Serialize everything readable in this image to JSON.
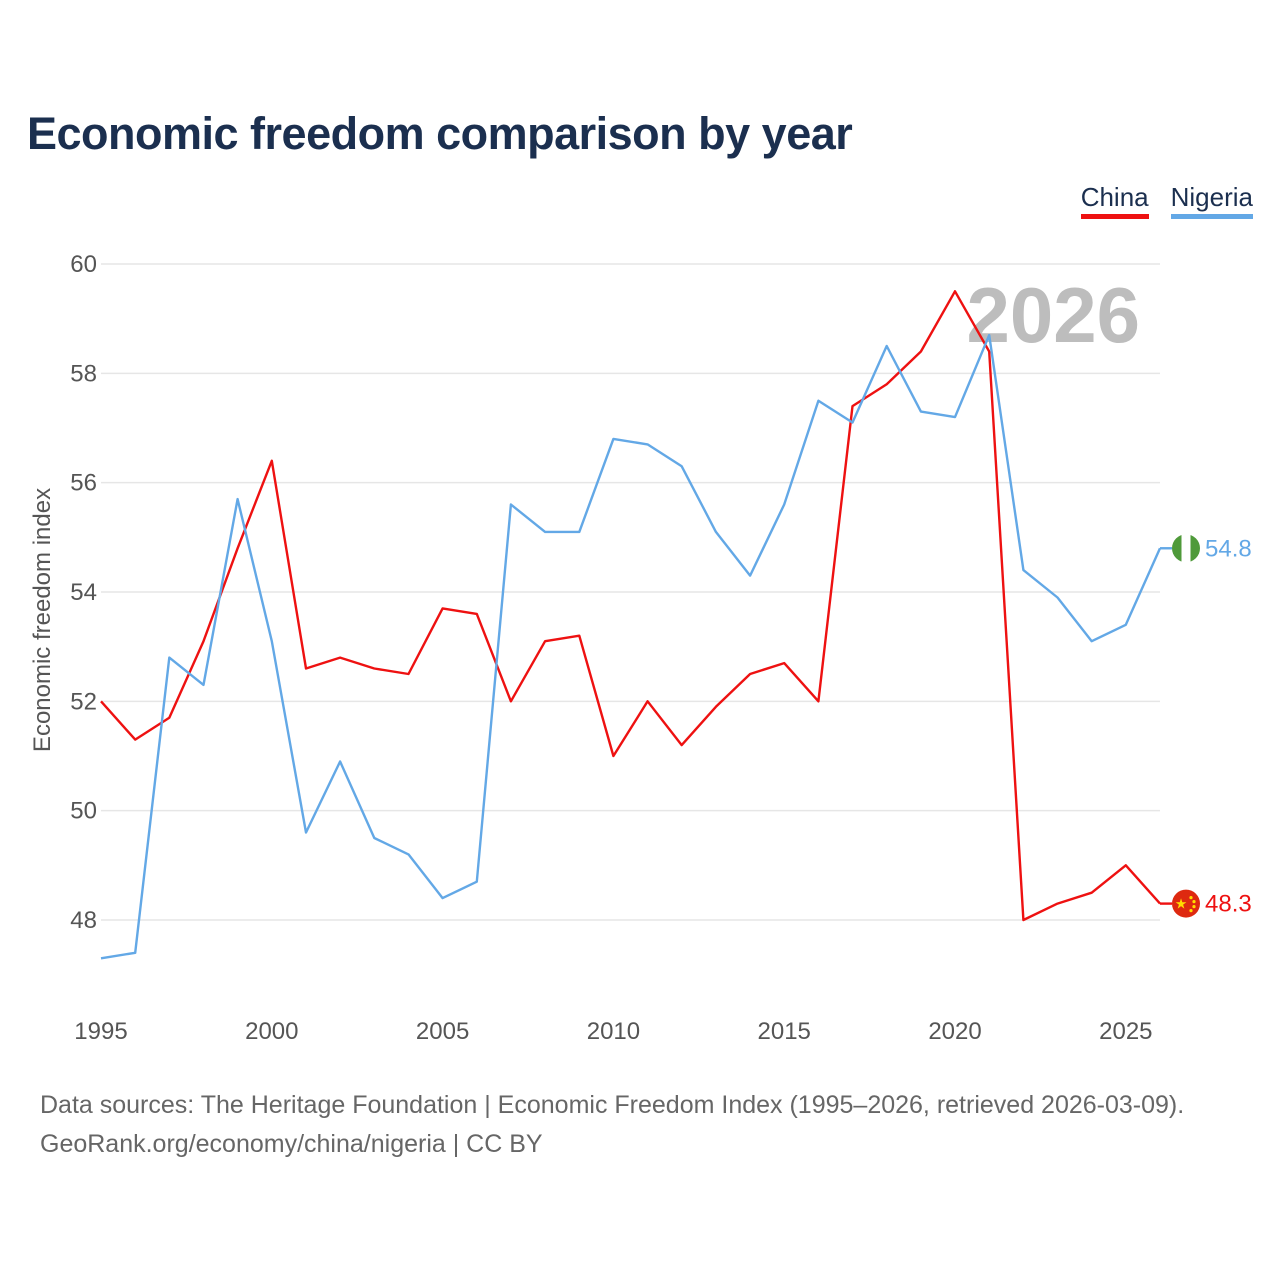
{
  "header": {
    "title": "Economic freedom comparison by year"
  },
  "legend": [
    {
      "name": "China",
      "color": "#ee1111"
    },
    {
      "name": "Nigeria",
      "color": "#63a8e6"
    }
  ],
  "footer": {
    "line1": "Data sources: The Heritage Foundation | Economic Freedom Index (1995–2026, retrieved 2026-03-09).",
    "line2": "GeoRank.org/economy/china/nigeria | CC BY"
  },
  "chart_data": {
    "type": "line",
    "title": "Economic freedom comparison by year",
    "xlabel": "",
    "ylabel": "Economic freedom index",
    "watermark": "2026",
    "x": [
      1995,
      1996,
      1997,
      1998,
      1999,
      2000,
      2001,
      2002,
      2003,
      2004,
      2005,
      2006,
      2007,
      2008,
      2009,
      2010,
      2011,
      2012,
      2013,
      2014,
      2015,
      2016,
      2017,
      2018,
      2019,
      2020,
      2021,
      2022,
      2023,
      2024,
      2025,
      2026
    ],
    "xlim": [
      1995,
      2026
    ],
    "ylim": [
      46.5,
      60
    ],
    "x_ticks": [
      1995,
      2000,
      2005,
      2010,
      2015,
      2020,
      2025
    ],
    "y_ticks": [
      48,
      50,
      52,
      54,
      56,
      58,
      60
    ],
    "grid": true,
    "legend_position": "top-right",
    "series": [
      {
        "name": "China",
        "color": "#ee1111",
        "end_label": "48.3",
        "flag": "china",
        "values": [
          52.0,
          51.3,
          51.7,
          53.1,
          54.8,
          56.4,
          52.6,
          52.8,
          52.6,
          52.5,
          53.7,
          53.6,
          52.0,
          53.1,
          53.2,
          51.0,
          52.0,
          51.2,
          51.9,
          52.5,
          52.7,
          52.0,
          57.4,
          57.8,
          58.4,
          59.5,
          58.4,
          48.0,
          48.3,
          48.5,
          49.0,
          48.3
        ]
      },
      {
        "name": "Nigeria",
        "color": "#63a8e6",
        "end_label": "54.8",
        "flag": "nigeria",
        "values": [
          47.3,
          47.4,
          52.8,
          52.3,
          55.7,
          53.1,
          49.6,
          50.9,
          49.5,
          49.2,
          48.4,
          48.7,
          55.6,
          55.1,
          55.1,
          56.8,
          56.7,
          56.3,
          55.1,
          54.3,
          55.6,
          57.5,
          57.1,
          58.5,
          57.3,
          57.2,
          58.7,
          54.4,
          53.9,
          53.1,
          53.4,
          54.8
        ]
      }
    ]
  }
}
